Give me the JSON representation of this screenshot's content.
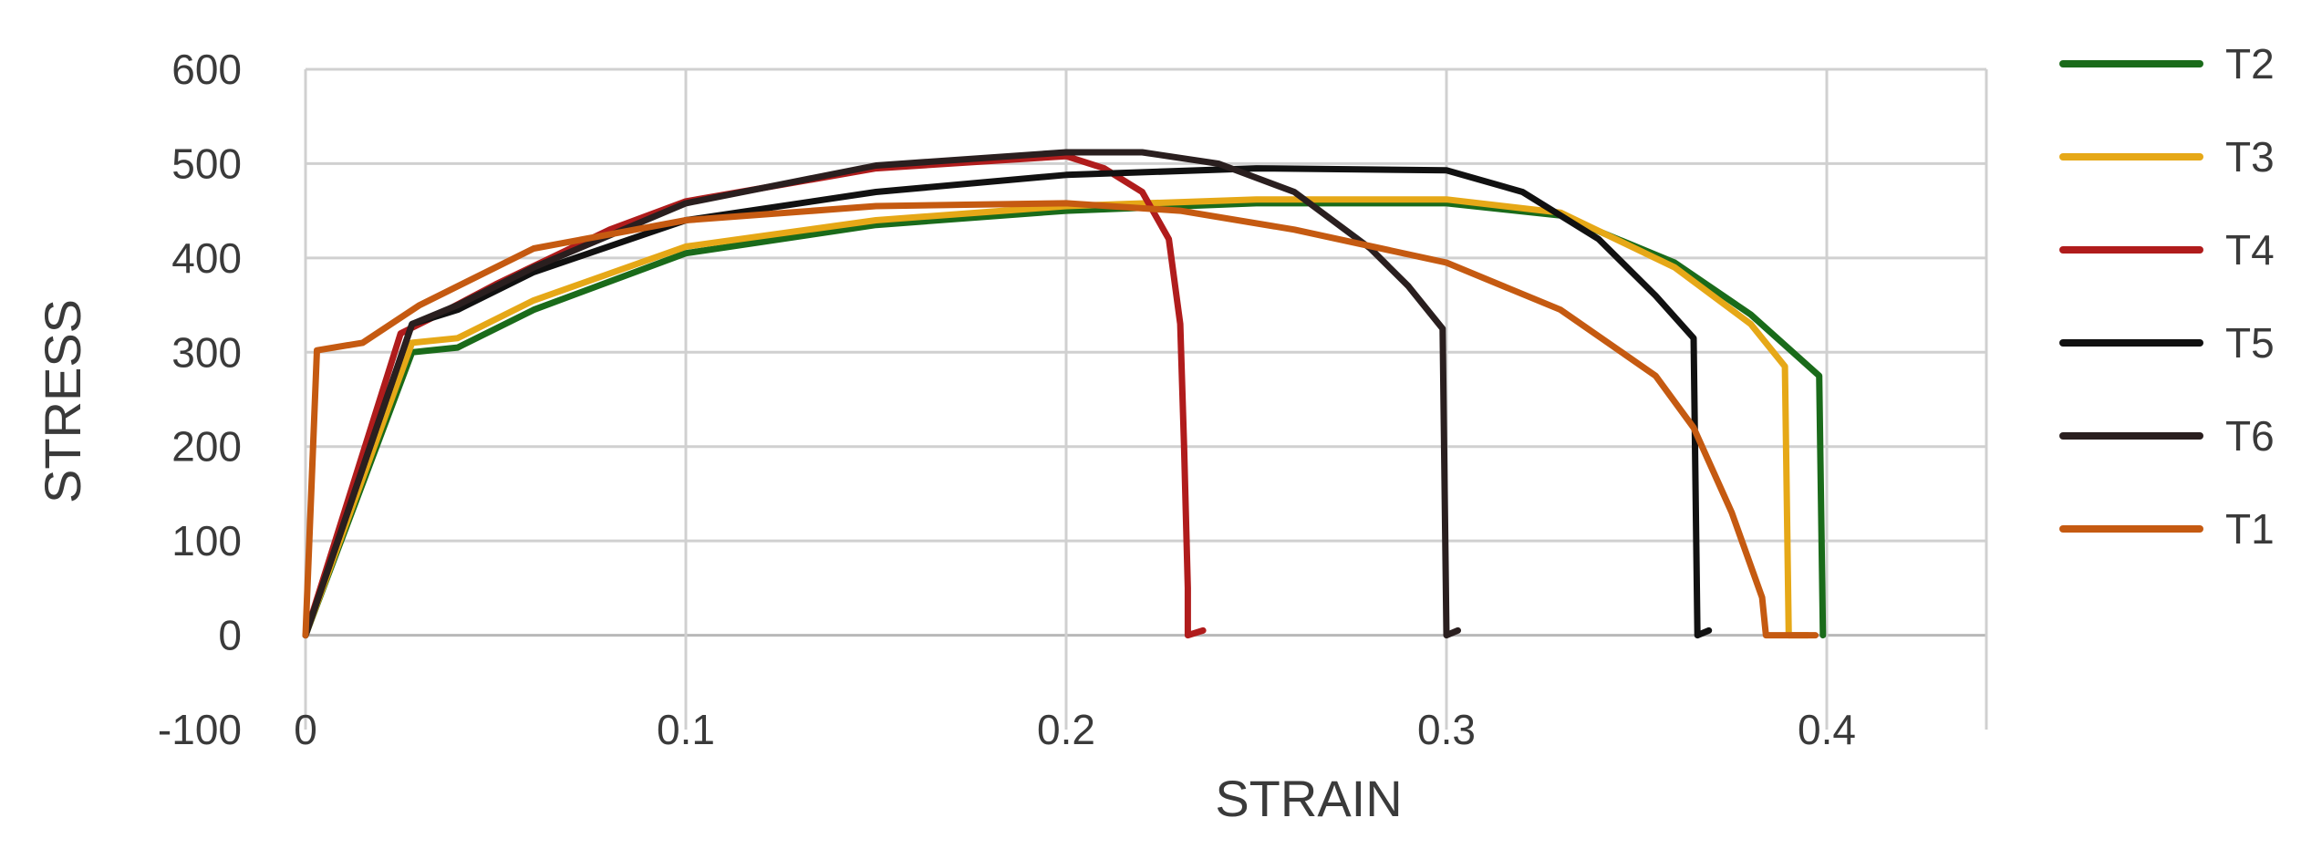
{
  "chart_data": {
    "type": "line",
    "xlabel": "STRAIN",
    "ylabel": "STRESS",
    "xlim": [
      0,
      0.42
    ],
    "ylim": [
      -100,
      600
    ],
    "xticks": [
      0,
      0.1,
      0.2,
      0.3,
      0.4
    ],
    "xtick_labels": [
      "0",
      "0.1",
      "0.2",
      "0.3",
      "0.4"
    ],
    "yticks": [
      -100,
      0,
      100,
      200,
      300,
      400,
      500,
      600
    ],
    "ytick_labels": [
      "-100",
      "0",
      "100",
      "200",
      "300",
      "400",
      "500",
      "600"
    ],
    "grid": true,
    "legend_position": "right",
    "series": [
      {
        "name": "T2",
        "color": "#1a6b1a",
        "points": [
          [
            0,
            0
          ],
          [
            0.028,
            300
          ],
          [
            0.04,
            305
          ],
          [
            0.06,
            345
          ],
          [
            0.1,
            405
          ],
          [
            0.15,
            435
          ],
          [
            0.2,
            450
          ],
          [
            0.25,
            458
          ],
          [
            0.3,
            458
          ],
          [
            0.33,
            445
          ],
          [
            0.36,
            395
          ],
          [
            0.38,
            340
          ],
          [
            0.398,
            275
          ],
          [
            0.399,
            0
          ]
        ]
      },
      {
        "name": "T3",
        "color": "#e6a817",
        "points": [
          [
            0,
            0
          ],
          [
            0.028,
            310
          ],
          [
            0.04,
            315
          ],
          [
            0.06,
            355
          ],
          [
            0.1,
            412
          ],
          [
            0.15,
            440
          ],
          [
            0.2,
            455
          ],
          [
            0.25,
            462
          ],
          [
            0.3,
            462
          ],
          [
            0.33,
            448
          ],
          [
            0.36,
            390
          ],
          [
            0.38,
            330
          ],
          [
            0.389,
            285
          ],
          [
            0.39,
            0
          ],
          [
            0.395,
            0
          ]
        ]
      },
      {
        "name": "T4",
        "color": "#b01c1c",
        "points": [
          [
            0,
            0
          ],
          [
            0.025,
            320
          ],
          [
            0.035,
            340
          ],
          [
            0.05,
            372
          ],
          [
            0.08,
            430
          ],
          [
            0.1,
            460
          ],
          [
            0.15,
            495
          ],
          [
            0.2,
            508
          ],
          [
            0.21,
            495
          ],
          [
            0.22,
            470
          ],
          [
            0.227,
            420
          ],
          [
            0.23,
            330
          ],
          [
            0.231,
            200
          ],
          [
            0.232,
            50
          ],
          [
            0.232,
            0
          ],
          [
            0.236,
            5
          ]
        ]
      },
      {
        "name": "T5",
        "color": "#111111",
        "points": [
          [
            0,
            0
          ],
          [
            0.028,
            330
          ],
          [
            0.04,
            345
          ],
          [
            0.06,
            385
          ],
          [
            0.1,
            440
          ],
          [
            0.15,
            470
          ],
          [
            0.2,
            488
          ],
          [
            0.25,
            495
          ],
          [
            0.3,
            493
          ],
          [
            0.32,
            470
          ],
          [
            0.34,
            420
          ],
          [
            0.355,
            360
          ],
          [
            0.365,
            315
          ],
          [
            0.366,
            0
          ],
          [
            0.369,
            5
          ]
        ]
      },
      {
        "name": "T6",
        "color": "#2a1f1f",
        "points": [
          [
            0,
            0
          ],
          [
            0.028,
            330
          ],
          [
            0.04,
            350
          ],
          [
            0.06,
            390
          ],
          [
            0.1,
            458
          ],
          [
            0.15,
            498
          ],
          [
            0.2,
            512
          ],
          [
            0.22,
            512
          ],
          [
            0.24,
            500
          ],
          [
            0.26,
            470
          ],
          [
            0.28,
            410
          ],
          [
            0.29,
            370
          ],
          [
            0.299,
            325
          ],
          [
            0.3,
            0
          ],
          [
            0.303,
            5
          ]
        ]
      },
      {
        "name": "T1",
        "color": "#c55a11",
        "points": [
          [
            0,
            0
          ],
          [
            0.003,
            302
          ],
          [
            0.015,
            310
          ],
          [
            0.03,
            350
          ],
          [
            0.06,
            410
          ],
          [
            0.1,
            440
          ],
          [
            0.15,
            455
          ],
          [
            0.2,
            458
          ],
          [
            0.23,
            450
          ],
          [
            0.26,
            430
          ],
          [
            0.3,
            395
          ],
          [
            0.33,
            345
          ],
          [
            0.355,
            275
          ],
          [
            0.365,
            220
          ],
          [
            0.375,
            130
          ],
          [
            0.383,
            40
          ],
          [
            0.384,
            0
          ],
          [
            0.397,
            0
          ]
        ]
      }
    ]
  }
}
